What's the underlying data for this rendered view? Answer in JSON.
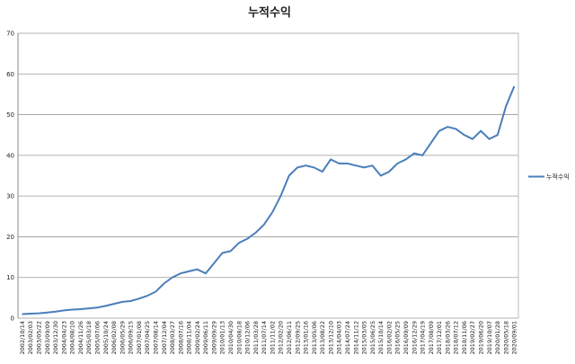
{
  "chart_data": {
    "type": "line",
    "title": "누적수익",
    "categories": [
      "2002/10/14",
      "2003/02/03",
      "2003/05/22",
      "2003/09/09",
      "2003/12/30",
      "2004/04/23",
      "2004/08/10",
      "2004/11/26",
      "2005/03/18",
      "2005/07/06",
      "2005/10/24",
      "2006/02/08",
      "2006/05/29",
      "2006/09/15",
      "2007/01/08",
      "2007/04/25",
      "2007/08/14",
      "2007/12/04",
      "2008/03/27",
      "2008/07/16",
      "2008/11/04",
      "2009/02/24",
      "2009/06/11",
      "2009/09/29",
      "2010/01/13",
      "2010/04/30",
      "2010/08/18",
      "2010/12/06",
      "2011/03/28",
      "2011/07/14",
      "2011/11/02",
      "2012/02/20",
      "2012/06/11",
      "2012/09/25",
      "2013/01/16",
      "2013/05/06",
      "2013/08/22",
      "2013/12/10",
      "2014/04/03",
      "2014/07/24",
      "2014/11/12",
      "2015/03/05",
      "2015/06/25",
      "2015/10/14",
      "2016/02/02",
      "2016/05/25",
      "2016/09/09",
      "2016/12/29",
      "2017/04/19",
      "2017/08/09",
      "2017/12/01",
      "2018/03/26",
      "2018/07/12",
      "2018/11/06",
      "2019/02/27",
      "2019/06/20",
      "2019/10/07",
      "2020/01/28",
      "2020/05/18",
      "2020/09/01"
    ],
    "series": [
      {
        "name": "누적수익",
        "color": "#4a7ebb",
        "values": [
          1.0,
          1.1,
          1.2,
          1.4,
          1.6,
          1.9,
          2.1,
          2.2,
          2.4,
          2.6,
          3.0,
          3.5,
          4.0,
          4.2,
          4.8,
          5.5,
          6.5,
          8.5,
          10,
          11,
          11.5,
          12,
          11,
          13.5,
          16,
          16.5,
          18.5,
          19.5,
          21,
          23,
          26,
          30,
          35,
          37,
          37.5,
          37,
          36,
          39,
          38,
          38,
          37.5,
          37,
          37.5,
          35,
          36,
          38,
          39,
          40.5,
          40,
          43,
          46,
          47,
          46.5,
          45,
          44,
          46,
          44,
          45,
          52,
          57
        ]
      }
    ],
    "ylim": [
      0,
      70
    ],
    "yticks": [
      0,
      10,
      20,
      30,
      40,
      50,
      60,
      70
    ],
    "grid": true,
    "legend": "right"
  }
}
